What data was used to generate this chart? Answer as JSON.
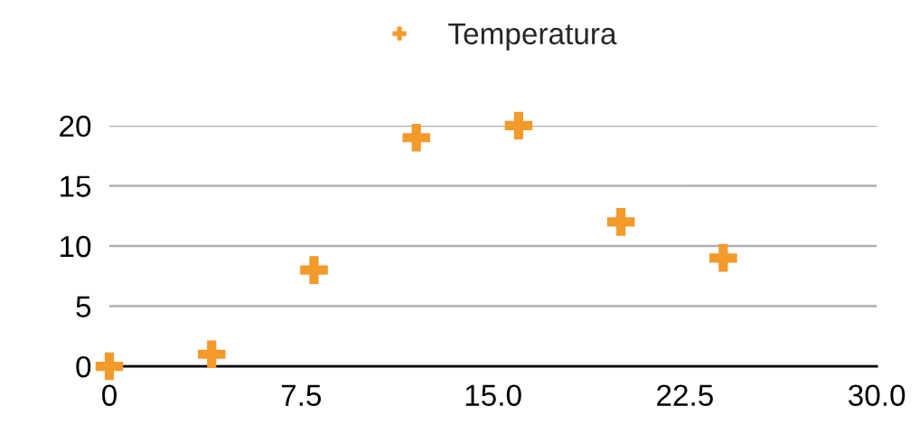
{
  "chart_data": {
    "type": "scatter",
    "x": [
      0,
      4,
      8,
      12,
      16,
      20,
      24
    ],
    "series": [
      {
        "name": "Temperatura",
        "color": "#f39a2b",
        "values": [
          0,
          1,
          8,
          19,
          20,
          12,
          9
        ]
      }
    ],
    "xlim": [
      0,
      30
    ],
    "xticks": [
      0,
      {
        "value": 7.5,
        "label": "7.5"
      },
      {
        "value": 15,
        "label": "15.0"
      },
      {
        "value": 22.5,
        "label": "22.5"
      },
      {
        "value": 30,
        "label": "30.0"
      }
    ],
    "ylim": [
      0,
      20
    ],
    "yticks": [
      0,
      5,
      10,
      15,
      20
    ],
    "grid": "y",
    "legend": "top",
    "marker": "cross"
  }
}
